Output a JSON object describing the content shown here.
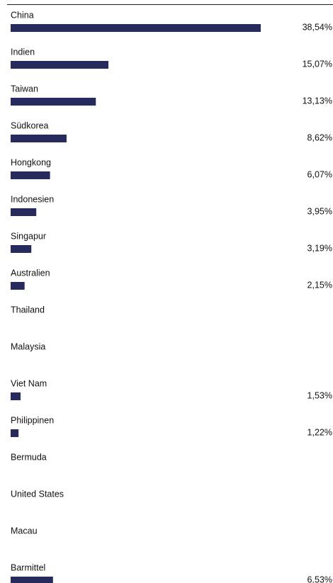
{
  "chart_data": {
    "type": "bar",
    "orientation": "horizontal",
    "color": "#272a5c",
    "categories": [
      "China",
      "Indien",
      "Taiwan",
      "Südkorea",
      "Hongkong",
      "Indonesien",
      "Singapur",
      "Australien",
      "Thailand",
      "Malaysia",
      "Viet Nam",
      "Philippinen",
      "Bermuda",
      "United States",
      "Macau",
      "Barmittel"
    ],
    "values": [
      38.54,
      15.07,
      13.13,
      8.62,
      6.07,
      3.95,
      3.19,
      2.15,
      null,
      null,
      1.53,
      1.22,
      null,
      null,
      null,
      6.53
    ],
    "value_labels": [
      "38,54%",
      "15,07%",
      "13,13%",
      "8,62%",
      "6,07%",
      "3,95%",
      "3,19%",
      "2,15%",
      null,
      null,
      "1,53%",
      "1,22%",
      null,
      null,
      null,
      "6.53%"
    ]
  }
}
